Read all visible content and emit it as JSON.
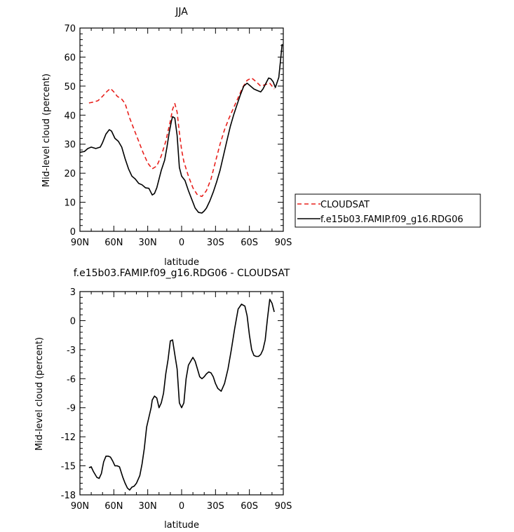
{
  "chart_data": [
    {
      "type": "line",
      "title": "JJA",
      "xlabel": "latitude",
      "ylabel": "Mid-level cloud (percent)",
      "xlim": [
        90,
        -90
      ],
      "ylim": [
        0,
        70
      ],
      "xticks": [
        90,
        60,
        30,
        0,
        -30,
        -60,
        -90
      ],
      "xtick_labels": [
        "90N",
        "60N",
        "30N",
        "0",
        "30S",
        "60S",
        "90S"
      ],
      "yticks": [
        0,
        10,
        20,
        30,
        40,
        50,
        60,
        70
      ],
      "ytick_labels": [
        "0",
        "10",
        "20",
        "30",
        "40",
        "50",
        "60",
        "70"
      ],
      "legend_position": "outside-right",
      "series": [
        {
          "name": "CLOUDSAT",
          "color": "#e8201c",
          "dash": "dashed",
          "x": [
            82,
            78,
            74,
            70,
            66,
            63,
            60,
            57,
            53,
            50,
            46,
            42,
            38,
            34,
            30,
            26,
            22,
            18,
            14,
            10,
            8,
            6,
            4,
            2,
            0,
            -2,
            -6,
            -10,
            -14,
            -18,
            -22,
            -26,
            -30,
            -34,
            -38,
            -42,
            -46,
            -50,
            -54,
            -58,
            -62,
            -66,
            -70,
            -74,
            -78,
            -82
          ],
          "y": [
            44.2,
            44.5,
            45.0,
            46.5,
            48.2,
            49.2,
            48.0,
            46.5,
            45.5,
            44.0,
            39.0,
            35.0,
            31.0,
            27.0,
            23.5,
            21.5,
            22.5,
            26.0,
            31.0,
            38.0,
            42.0,
            44.0,
            41.0,
            34.0,
            28.0,
            24.0,
            19.0,
            15.0,
            12.5,
            12.0,
            14.0,
            18.0,
            24.0,
            30.0,
            35.0,
            39.0,
            42.5,
            46.0,
            49.5,
            52.0,
            52.8,
            51.5,
            50.0,
            50.5,
            51.0,
            49.0
          ]
        },
        {
          "name": "f.e15b03.FAMIP.f09_g16.RDG06",
          "color": "#000000",
          "dash": "solid",
          "x": [
            90,
            86,
            83,
            80,
            76,
            72,
            70,
            67,
            64,
            62,
            59,
            56,
            53,
            50,
            47,
            44,
            41,
            38,
            35,
            32,
            29,
            26,
            24,
            22,
            20,
            18,
            15,
            13,
            11,
            9,
            8,
            6,
            4,
            2,
            0,
            -3,
            -6,
            -9,
            -12,
            -15,
            -18,
            -20,
            -22,
            -25,
            -28,
            -31,
            -34,
            -37,
            -40,
            -43,
            -46,
            -49,
            -52,
            -55,
            -58,
            -61,
            -64,
            -67,
            -70,
            -72,
            -74,
            -77,
            -79,
            -81,
            -83,
            -86,
            -89
          ],
          "y": [
            27.2,
            27.5,
            28.5,
            29.0,
            28.5,
            29.0,
            30.5,
            33.5,
            35.0,
            34.5,
            32.0,
            31.0,
            29.0,
            25.0,
            21.5,
            19.0,
            18.0,
            16.5,
            16.0,
            15.0,
            14.8,
            12.5,
            13.0,
            15.0,
            18.0,
            21.0,
            24.5,
            29.0,
            34.0,
            38.0,
            39.5,
            39.0,
            33.0,
            22.0,
            19.0,
            17.5,
            14.0,
            11.0,
            8.0,
            6.5,
            6.3,
            7.0,
            8.0,
            10.5,
            13.5,
            17.0,
            21.0,
            26.0,
            31.0,
            36.0,
            40.0,
            43.5,
            47.0,
            50.0,
            51.0,
            50.0,
            49.0,
            48.5,
            48.0,
            49.0,
            50.5,
            52.8,
            52.5,
            51.5,
            49.5,
            53.0,
            64.5
          ]
        }
      ]
    },
    {
      "type": "line",
      "title": "f.e15b03.FAMIP.f09_g16.RDG06 - CLOUDSAT",
      "xlabel": "latitude",
      "ylabel": "Mid-level cloud (percent)",
      "xlim": [
        90,
        -90
      ],
      "ylim": [
        -18,
        3
      ],
      "xticks": [
        90,
        60,
        30,
        0,
        -30,
        -60,
        -90
      ],
      "xtick_labels": [
        "90N",
        "60N",
        "30N",
        "0",
        "30S",
        "60S",
        "90S"
      ],
      "yticks": [
        3,
        0,
        -3,
        -6,
        -9,
        -12,
        -15,
        -18
      ],
      "ytick_labels": [
        "3",
        "0",
        "-3",
        "-6",
        "-9",
        "-12",
        "-15",
        "-18"
      ],
      "series": [
        {
          "color": "#000000",
          "dash": "solid",
          "x": [
            82,
            80,
            78,
            75,
            73,
            71,
            69,
            67,
            65,
            63,
            61,
            59,
            57,
            55,
            52,
            50,
            48,
            46,
            44,
            42,
            40,
            37,
            35,
            33,
            31,
            29,
            27,
            26,
            24,
            22,
            20,
            18,
            16,
            14,
            12,
            10,
            8,
            6,
            4,
            2,
            0,
            -2,
            -4,
            -6,
            -8,
            -10,
            -12,
            -14,
            -16,
            -18,
            -20,
            -22,
            -24,
            -26,
            -28,
            -30,
            -32,
            -35,
            -38,
            -41,
            -44,
            -47,
            -50,
            -53,
            -56,
            -58,
            -60,
            -62,
            -64,
            -66,
            -68,
            -70,
            -72,
            -74,
            -76,
            -78,
            -80,
            -82
          ],
          "y": [
            -15.2,
            -15.1,
            -15.6,
            -16.2,
            -16.3,
            -15.8,
            -14.6,
            -14.0,
            -14.0,
            -14.1,
            -14.5,
            -15.0,
            -15.0,
            -15.1,
            -16.2,
            -16.8,
            -17.3,
            -17.5,
            -17.2,
            -17.1,
            -16.8,
            -16.0,
            -14.8,
            -13.2,
            -11.0,
            -10.0,
            -9.0,
            -8.2,
            -7.8,
            -8.0,
            -9.0,
            -8.5,
            -7.5,
            -5.5,
            -4.0,
            -2.1,
            -2.0,
            -3.5,
            -5.0,
            -8.5,
            -9.0,
            -8.5,
            -6.0,
            -4.6,
            -4.2,
            -3.8,
            -4.2,
            -5.0,
            -5.8,
            -6.0,
            -5.8,
            -5.5,
            -5.3,
            -5.4,
            -5.8,
            -6.5,
            -7.0,
            -7.3,
            -6.5,
            -5.0,
            -3.0,
            -0.8,
            1.2,
            1.7,
            1.5,
            0.5,
            -1.5,
            -3.0,
            -3.6,
            -3.7,
            -3.7,
            -3.5,
            -3.0,
            -2.0,
            0.2,
            2.2,
            1.8,
            0.9
          ]
        }
      ]
    }
  ]
}
